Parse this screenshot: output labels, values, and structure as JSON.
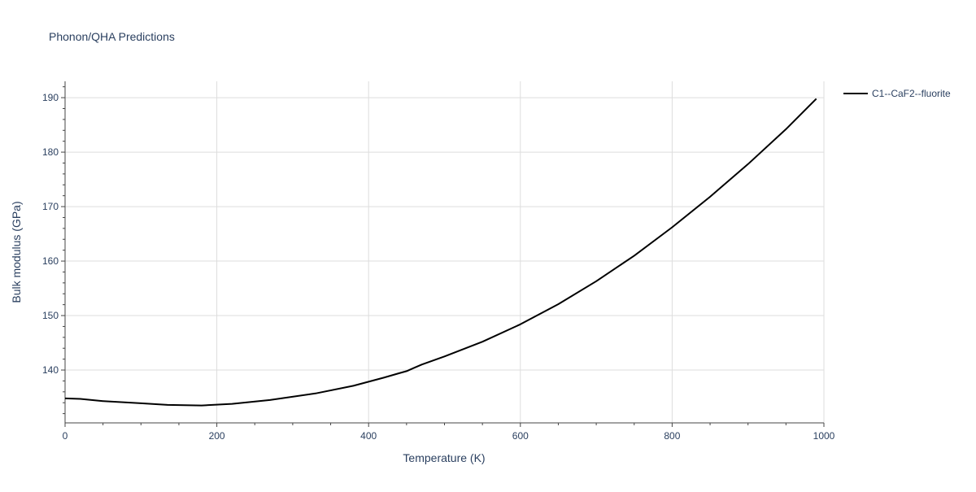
{
  "chart_data": {
    "type": "line",
    "title": "Phonon/QHA Predictions",
    "xlabel": "Temperature (K)",
    "ylabel": "Bulk modulus (GPa)",
    "xlim": [
      0,
      1000
    ],
    "ylim": [
      130.3,
      193
    ],
    "x_ticks": [
      0,
      200,
      400,
      600,
      800,
      1000
    ],
    "y_ticks": [
      140,
      150,
      160,
      170,
      180,
      190
    ],
    "x_tick_labels": [
      "0",
      "200",
      "400",
      "600",
      "800",
      "1000"
    ],
    "y_tick_labels": [
      "140",
      "150",
      "160",
      "170",
      "180",
      "190"
    ],
    "grid": true,
    "legend_position": "top-right",
    "series": [
      {
        "name": "C1--CaF2--fluorite",
        "color": "#000000",
        "x": [
          0,
          20,
          50,
          100,
          135,
          180,
          220,
          270,
          330,
          380,
          420,
          440,
          450,
          460,
          470,
          500,
          550,
          600,
          650,
          700,
          750,
          800,
          850,
          900,
          950,
          990
        ],
        "y": [
          134.8,
          134.7,
          134.3,
          133.9,
          133.6,
          133.5,
          133.8,
          134.5,
          135.7,
          137.1,
          138.6,
          139.4,
          139.8,
          140.4,
          141.0,
          142.5,
          145.2,
          148.4,
          152.1,
          156.3,
          161.0,
          166.2,
          171.8,
          177.8,
          184.2,
          189.8
        ]
      }
    ]
  }
}
